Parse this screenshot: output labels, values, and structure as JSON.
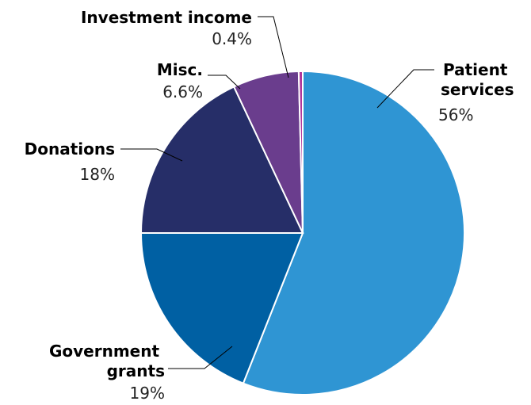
{
  "chart_data": {
    "type": "pie",
    "title": "",
    "slices": [
      {
        "label": [
          "Patient",
          "services"
        ],
        "value": 56,
        "value_text": "56%",
        "color": "#2F95D3"
      },
      {
        "label": [
          "Government",
          "grants"
        ],
        "value": 19,
        "value_text": "19%",
        "color": "#0060A3"
      },
      {
        "label": [
          "Donations"
        ],
        "value": 18,
        "value_text": "18%",
        "color": "#262E68"
      },
      {
        "label": [
          "Misc."
        ],
        "value": 6.6,
        "value_text": "6.6%",
        "color": "#6A3D8D"
      },
      {
        "label": [
          "Investment income"
        ],
        "value": 0.4,
        "value_text": "0.4%",
        "color": "#B0359B"
      }
    ]
  }
}
